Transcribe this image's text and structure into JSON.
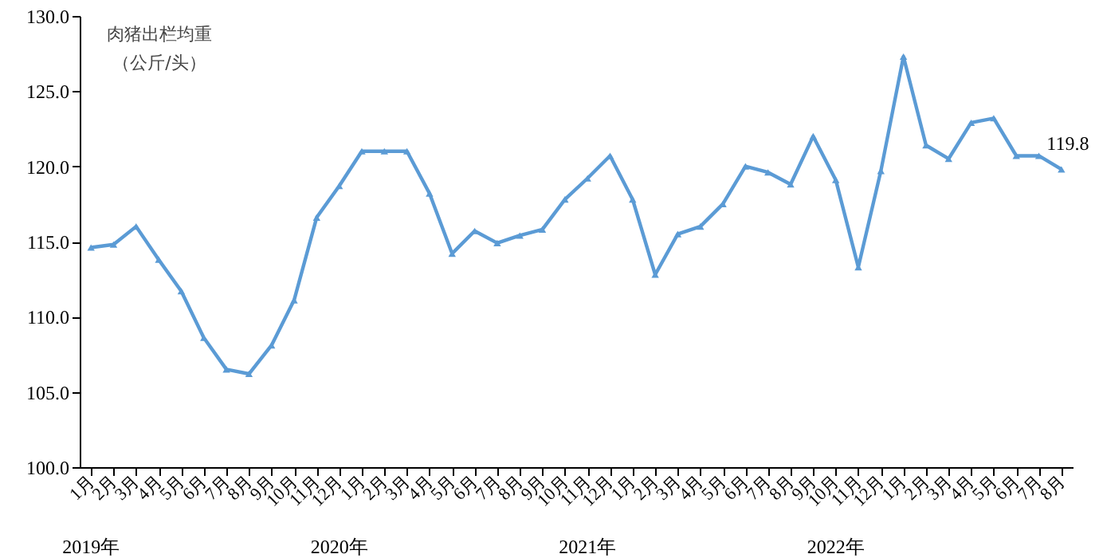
{
  "chart_data": {
    "type": "line",
    "ylabel": "肉猪出栏均重（公斤/头）",
    "categories": [
      "1月",
      "2月",
      "3月",
      "4月",
      "5月",
      "6月",
      "7月",
      "8月",
      "9月",
      "10月",
      "11月",
      "12月",
      "1月",
      "2月",
      "3月",
      "4月",
      "5月",
      "6月",
      "7月",
      "8月",
      "9月",
      "10月",
      "11月",
      "12月",
      "1月",
      "2月",
      "3月",
      "4月",
      "5月",
      "6月",
      "7月",
      "8月",
      "9月",
      "10月",
      "11月",
      "12月",
      "1月",
      "2月",
      "3月",
      "4月",
      "5月",
      "6月",
      "7月",
      "8月"
    ],
    "series": [
      {
        "color": "#5b9bd5",
        "values": [
          114.6,
          114.8,
          116.0,
          113.8,
          111.7,
          108.6,
          106.5,
          106.2,
          108.1,
          111.1,
          116.6,
          118.7,
          121.0,
          121.0,
          121.0,
          118.2,
          114.2,
          115.7,
          114.9,
          115.4,
          115.8,
          117.8,
          119.2,
          120.7,
          117.8,
          112.8,
          115.5,
          116.0,
          117.5,
          120.0,
          119.6,
          118.8,
          122.0,
          119.1,
          113.3,
          119.7,
          127.3,
          121.4,
          120.5,
          122.9,
          123.2,
          120.7,
          120.7,
          119.8
        ],
        "value_labels": [
          null,
          null,
          null,
          null,
          null,
          null,
          null,
          null,
          null,
          null,
          null,
          null,
          null,
          null,
          null,
          null,
          null,
          null,
          null,
          null,
          null,
          null,
          null,
          null,
          null,
          null,
          null,
          null,
          null,
          null,
          null,
          null,
          null,
          null,
          null,
          null,
          null,
          null,
          null,
          null,
          null,
          null,
          null,
          "119.8"
        ]
      }
    ],
    "annotations": [
      "2019年",
      "2020年",
      "2021年",
      "2022年"
    ],
    "ylim": [
      100,
      130
    ],
    "yticks": [
      {
        "value": 100,
        "label": "100.0"
      },
      {
        "value": 105,
        "label": "105.0"
      },
      {
        "value": 110,
        "label": "110.0"
      },
      {
        "value": 115,
        "label": "115.0"
      },
      {
        "value": 120,
        "label": "120.0"
      },
      {
        "value": 125,
        "label": "125.0"
      },
      {
        "value": 130,
        "label": "130.0"
      }
    ],
    "grid": false,
    "marker": "triangle",
    "line_style": "solid"
  }
}
